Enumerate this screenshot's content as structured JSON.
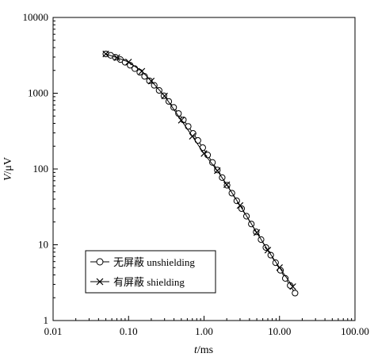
{
  "chart_data": {
    "type": "line",
    "xscale": "log",
    "yscale": "log",
    "xlim": [
      0.01,
      100
    ],
    "ylim": [
      1,
      10000
    ],
    "xticks": [
      0.01,
      0.1,
      1,
      10,
      100
    ],
    "xtick_labels": [
      "0.01",
      "0.10",
      "1.00",
      "10.00",
      "100.00"
    ],
    "yticks": [
      1,
      10,
      100,
      1000,
      10000
    ],
    "ytick_labels": [
      "1",
      "10",
      "100",
      "1000",
      "10000"
    ],
    "xlabel_italic": "t",
    "xlabel_unit": "/ms",
    "ylabel_italic": "V",
    "ylabel_unit": "/μV",
    "grid": false,
    "legend_position": "bottom-left",
    "series": [
      {
        "name": "无屏蔽 unshielding",
        "marker": "circle",
        "x": [
          0.05,
          0.058,
          0.067,
          0.078,
          0.09,
          0.105,
          0.121,
          0.141,
          0.163,
          0.189,
          0.219,
          0.254,
          0.294,
          0.341,
          0.396,
          0.459,
          0.532,
          0.617,
          0.716,
          0.83,
          0.962,
          1.116,
          1.294,
          1.5,
          1.74,
          2.018,
          2.34,
          2.714,
          3.147,
          3.65,
          4.233,
          4.909,
          5.693,
          6.602,
          7.656,
          8.879,
          10.3,
          11.94,
          13.85,
          16.06
        ],
        "y": [
          3300,
          3160,
          2980,
          2780,
          2560,
          2340,
          2110,
          1890,
          1670,
          1460,
          1270,
          1090,
          925,
          780,
          650,
          540,
          445,
          365,
          295,
          238,
          191,
          153,
          122,
          97,
          77,
          61,
          48,
          38,
          30,
          23.8,
          18.8,
          14.8,
          11.7,
          9.2,
          7.3,
          5.8,
          4.6,
          3.6,
          2.9,
          2.3
        ]
      },
      {
        "name": "有屏蔽 shielding",
        "marker": "x",
        "x": [
          0.05,
          0.07,
          0.1,
          0.15,
          0.2,
          0.3,
          0.5,
          0.7,
          1.0,
          1.5,
          2.0,
          3.0,
          5.0,
          7.0,
          10.0,
          15.0
        ],
        "y": [
          3300,
          2950,
          2580,
          1950,
          1450,
          920,
          440,
          270,
          160,
          95,
          62,
          33,
          14.5,
          8.5,
          5.0,
          2.8
        ]
      }
    ]
  }
}
